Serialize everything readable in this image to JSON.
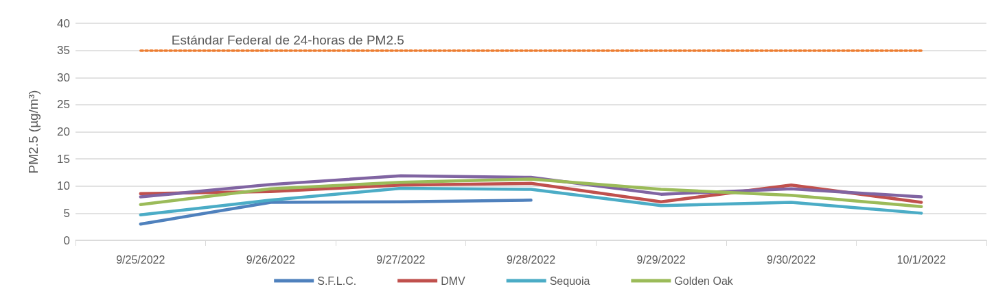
{
  "chart_data": {
    "type": "line",
    "ylabel": "PM2.5 (µg/m³)",
    "categories": [
      "9/25/2022",
      "9/26/2022",
      "9/27/2022",
      "9/28/2022",
      "9/29/2022",
      "9/30/2022",
      "10/1/2022"
    ],
    "series": [
      {
        "name": "S.F.L.C.",
        "color": "#4f81bd",
        "values": [
          3.0,
          7.0,
          7.1,
          7.4,
          null,
          null,
          null
        ]
      },
      {
        "name": "DMV",
        "color": "#c0504d",
        "values": [
          8.6,
          9.0,
          10.2,
          10.5,
          7.1,
          10.2,
          7.0
        ]
      },
      {
        "color": "#8064a2",
        "values": [
          8.0,
          10.3,
          11.9,
          11.6,
          8.5,
          9.5,
          8.0
        ]
      },
      {
        "name": "Sequoia",
        "color": "#4bacc6",
        "values": [
          4.7,
          7.4,
          9.6,
          9.4,
          6.4,
          7.0,
          5.0
        ]
      },
      {
        "name": "Golden Oak",
        "color": "#9bbb59",
        "values": [
          6.6,
          9.5,
          10.7,
          11.3,
          9.4,
          8.3,
          6.2
        ]
      }
    ],
    "ylim": [
      0,
      40
    ],
    "yticks": [
      0,
      5,
      10,
      15,
      20,
      25,
      30,
      35,
      40
    ],
    "grid": "y",
    "legend": "bottom",
    "marker": "none",
    "line_style": "solid",
    "ref_lines": [
      {
        "axis": "y",
        "value": 35,
        "label": "Estándar Federal de 24-horas de PM2.5",
        "color": "#ed7d31",
        "line_style": "dotted"
      }
    ]
  }
}
